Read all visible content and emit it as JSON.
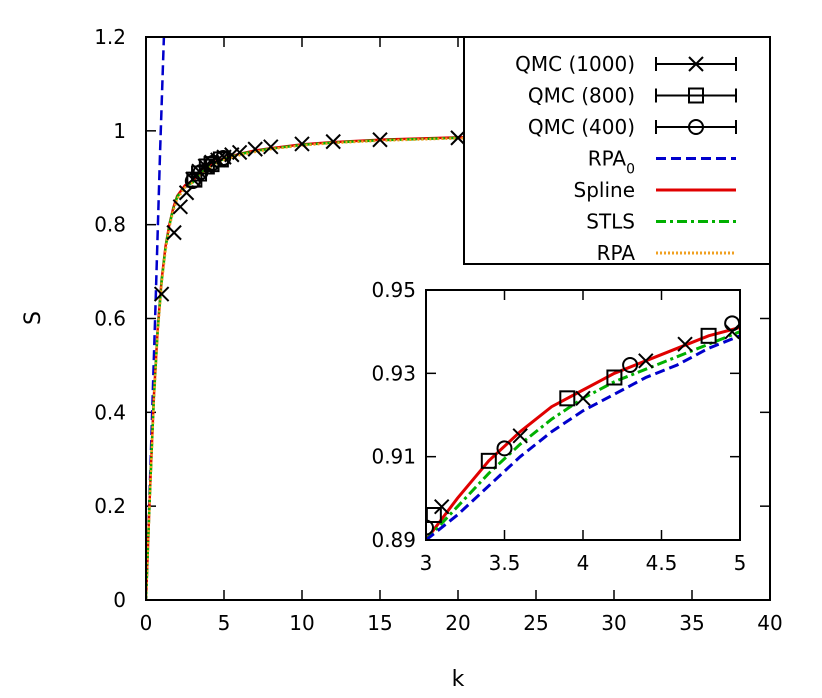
{
  "chart_data": [
    {
      "type": "line",
      "role": "main",
      "xlabel": "k",
      "ylabel": "S",
      "xlim": [
        0,
        40
      ],
      "ylim": [
        0,
        1.2
      ],
      "xticks": [
        0,
        5,
        10,
        15,
        20,
        25,
        30,
        35,
        40
      ],
      "yticks": [
        0,
        0.2,
        0.4,
        0.6,
        0.8,
        1,
        1.2
      ],
      "xtick_labels": [
        "0",
        "5",
        "10",
        "15",
        "20",
        "25",
        "30",
        "35",
        "40"
      ],
      "ytick_labels": [
        "0",
        "0.2",
        "0.4",
        "0.6",
        "0.8",
        "1",
        "1.2"
      ],
      "legend_position": "top-right",
      "series": [
        {
          "name": "QMC (1000)",
          "marker": "cross",
          "color": "#000000",
          "x": [
            1.0,
            1.8,
            2.2,
            2.6,
            3.0,
            3.4,
            3.8,
            4.2,
            4.6,
            5.0,
            5.5,
            6.0,
            7.0,
            8.0,
            10.0,
            12.0,
            15.0,
            20.0,
            25.0,
            30.0,
            35.0,
            38.0,
            40.0
          ],
          "y": [
            0.652,
            0.783,
            0.838,
            0.868,
            0.897,
            0.914,
            0.925,
            0.933,
            0.938,
            0.944,
            0.949,
            0.954,
            0.961,
            0.966,
            0.972,
            0.977,
            0.981,
            0.985,
            0.988,
            0.991,
            0.995,
            0.997,
            0.998
          ]
        },
        {
          "name": "QMC (800)",
          "marker": "square",
          "color": "#000000",
          "x": [
            3.1,
            3.4,
            3.9,
            4.2,
            4.8
          ],
          "y": [
            0.896,
            0.909,
            0.924,
            0.929,
            0.939
          ]
        },
        {
          "name": "QMC (400)",
          "marker": "circle",
          "color": "#000000",
          "x": [
            3.0,
            3.5,
            4.3,
            4.95
          ],
          "y": [
            0.893,
            0.912,
            0.932,
            0.942
          ]
        },
        {
          "name": "RPA0",
          "color": "#0000cc",
          "style": "dashed",
          "x": [
            0,
            0.3,
            0.6,
            0.9,
            1.15
          ],
          "y": [
            0,
            0.3,
            0.62,
            0.95,
            1.2
          ]
        },
        {
          "name": "Spline",
          "color": "#e00000",
          "style": "solid",
          "x": [
            0,
            0.25,
            0.5,
            0.75,
            1.0,
            1.25,
            1.5,
            1.75,
            2.0,
            2.5,
            3.0,
            3.5,
            4.0,
            4.5,
            5.0,
            6.0,
            7.0,
            8.0,
            10.0,
            12.0,
            15.0,
            20.0,
            25.0,
            30.0,
            35.0,
            40.0
          ],
          "y": [
            0,
            0.228,
            0.431,
            0.578,
            0.682,
            0.753,
            0.801,
            0.836,
            0.861,
            0.884,
            0.894,
            0.912,
            0.926,
            0.935,
            0.941,
            0.951,
            0.958,
            0.963,
            0.971,
            0.976,
            0.981,
            0.986,
            0.989,
            0.991,
            0.992,
            0.994
          ]
        },
        {
          "name": "STLS",
          "color": "#00b000",
          "style": "dashdot",
          "x": [
            0,
            0.25,
            0.5,
            0.75,
            1.0,
            1.25,
            1.5,
            1.75,
            2.0,
            2.5,
            3.0,
            3.5,
            4.0,
            4.5,
            5.0,
            6.0,
            7.0,
            8.0,
            10.0,
            12.0,
            15.0,
            20.0,
            25.0,
            30.0,
            35.0,
            40.0
          ],
          "y": [
            0,
            0.226,
            0.428,
            0.575,
            0.679,
            0.75,
            0.799,
            0.834,
            0.859,
            0.882,
            0.89,
            0.909,
            0.923,
            0.933,
            0.94,
            0.95,
            0.957,
            0.962,
            0.97,
            0.975,
            0.98,
            0.985,
            0.988,
            0.99,
            0.991,
            0.993
          ]
        },
        {
          "name": "RPA",
          "color": "#f0a020",
          "style": "dotted",
          "x": [
            0,
            0.25,
            0.5,
            0.75,
            1.0,
            1.25,
            1.5,
            1.75,
            2.0,
            2.5,
            3.0,
            3.5,
            4.0,
            4.5,
            5.0,
            6.0,
            7.0,
            8.0,
            10.0,
            12.0,
            15.0,
            20.0,
            25.0,
            30.0,
            35.0,
            40.0
          ],
          "y": [
            0,
            0.222,
            0.422,
            0.569,
            0.673,
            0.745,
            0.795,
            0.83,
            0.855,
            0.879,
            0.89,
            0.905,
            0.919,
            0.93,
            0.938,
            0.948,
            0.955,
            0.961,
            0.969,
            0.974,
            0.979,
            0.984,
            0.987,
            0.989,
            0.99,
            0.992
          ]
        }
      ]
    },
    {
      "type": "line",
      "role": "inset",
      "xlim": [
        3,
        5
      ],
      "ylim": [
        0.89,
        0.95
      ],
      "xticks": [
        3,
        3.5,
        4,
        4.5,
        5
      ],
      "yticks": [
        0.89,
        0.91,
        0.93,
        0.95
      ],
      "xtick_labels": [
        "3",
        "3.5",
        "4",
        "4.5",
        "5"
      ],
      "ytick_labels": [
        "0.89",
        "0.91",
        "0.93",
        "0.95"
      ],
      "series": [
        {
          "name": "QMC (1000)",
          "marker": "cross",
          "x": [
            3.1,
            3.6,
            4.0,
            4.4,
            4.65,
            4.95
          ],
          "y": [
            0.898,
            0.915,
            0.924,
            0.933,
            0.937,
            0.94
          ]
        },
        {
          "name": "QMC (800)",
          "marker": "square",
          "x": [
            3.05,
            3.4,
            3.9,
            4.2,
            4.8
          ],
          "y": [
            0.896,
            0.909,
            0.924,
            0.929,
            0.939
          ]
        },
        {
          "name": "QMC (400)",
          "marker": "circle",
          "x": [
            3.0,
            3.5,
            4.3,
            4.95
          ],
          "y": [
            0.893,
            0.912,
            0.932,
            0.942
          ]
        },
        {
          "name": "Spline",
          "x": [
            3.0,
            3.2,
            3.4,
            3.6,
            3.8,
            4.0,
            4.2,
            4.4,
            4.6,
            4.8,
            5.0
          ],
          "y": [
            0.89,
            0.9,
            0.909,
            0.916,
            0.922,
            0.926,
            0.93,
            0.933,
            0.936,
            0.939,
            0.941
          ]
        },
        {
          "name": "STLS",
          "x": [
            3.0,
            3.2,
            3.4,
            3.6,
            3.8,
            4.0,
            4.2,
            4.4,
            4.6,
            4.8,
            5.0
          ],
          "y": [
            0.89,
            0.898,
            0.906,
            0.913,
            0.919,
            0.924,
            0.928,
            0.931,
            0.934,
            0.937,
            0.94
          ]
        },
        {
          "name": "RPA",
          "x": [
            3.0,
            3.2,
            3.4,
            3.6,
            3.8,
            4.0,
            4.2,
            4.4,
            4.6,
            4.8,
            5.0
          ],
          "y": [
            0.89,
            0.896,
            0.903,
            0.91,
            0.916,
            0.921,
            0.925,
            0.929,
            0.932,
            0.936,
            0.939
          ]
        }
      ]
    }
  ],
  "legend": {
    "entries": [
      {
        "label": "QMC (1000)",
        "kind": "cross"
      },
      {
        "label": "QMC (800)",
        "kind": "square"
      },
      {
        "label": "QMC (400)",
        "kind": "circle"
      },
      {
        "label": "RPA",
        "subscript": "0",
        "kind": "line",
        "color": "#0000cc",
        "style": "dashed"
      },
      {
        "label": "Spline",
        "kind": "line",
        "color": "#e00000",
        "style": "solid"
      },
      {
        "label": "STLS",
        "kind": "line",
        "color": "#00b000",
        "style": "dashdot"
      },
      {
        "label": "RPA",
        "kind": "line",
        "color": "#f0a020",
        "style": "dotted"
      }
    ]
  }
}
